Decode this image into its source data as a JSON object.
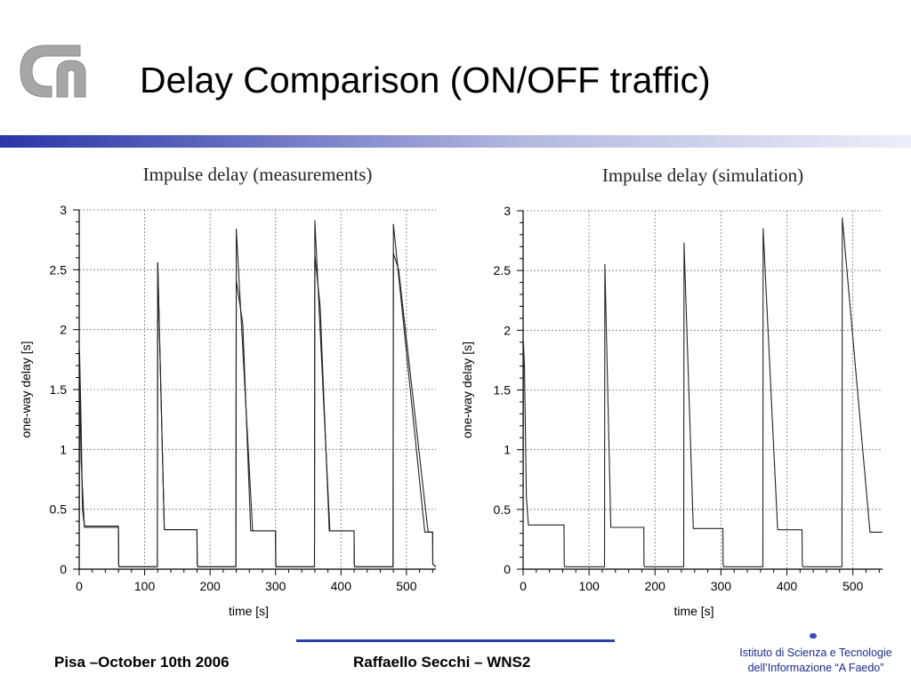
{
  "slide": {
    "title": "Delay Comparison (ON/OFF traffic)",
    "brand_color": "#2a36a8"
  },
  "footer": {
    "left_text": "Pisa –October 10th 2006",
    "center_text": "Raffaello Secchi – WNS2",
    "institute_line1": "Istituto di Scienza e Tecnologie",
    "institute_line2": "dell’Informazione “A Faedo”",
    "institute_color": "#1a2a8c"
  },
  "chart_data": [
    {
      "type": "line",
      "title": "Impulse delay (measurements)",
      "xlabel": "time [s]",
      "ylabel": "one-way delay [s]",
      "xlim": [
        0,
        545
      ],
      "ylim": [
        0,
        3
      ],
      "xticks": [
        0,
        100,
        200,
        300,
        400,
        500
      ],
      "yticks": [
        0,
        0.5,
        1,
        1.5,
        2,
        2.5,
        3
      ],
      "ytick_labels": [
        "0",
        "0.5",
        "1",
        "1.5",
        "2",
        "2.5",
        "3"
      ],
      "grid": true,
      "line_color": "#222222",
      "series": [
        {
          "x": [
            0,
            0.5,
            3,
            5,
            8,
            60,
            60.3,
            61,
            119.5,
            120,
            130,
            180,
            180.3,
            181,
            239.5,
            240,
            265,
            300,
            300.3,
            301,
            359.5,
            360,
            383,
            420,
            420.3,
            421,
            479.5,
            480,
            528,
            540,
            540.3,
            545
          ],
          "y": [
            0.02,
            1.82,
            1.2,
            0.5,
            0.36,
            0.36,
            0.04,
            0.02,
            0.02,
            2.56,
            0.33,
            0.33,
            0.04,
            0.02,
            0.02,
            2.84,
            0.32,
            0.32,
            0.04,
            0.02,
            0.02,
            2.91,
            0.32,
            0.32,
            0.04,
            0.02,
            0.02,
            2.88,
            0.31,
            0.31,
            0.04,
            0.02
          ]
        },
        {
          "x": [
            0,
            0.5,
            3,
            8,
            60,
            60.3,
            61,
            119.5,
            120,
            130,
            180,
            180.3,
            181,
            239.5,
            240,
            250,
            262,
            300,
            300.3,
            301,
            359.5,
            360,
            368,
            382,
            420,
            420.3,
            421,
            479.5,
            480,
            488,
            533,
            540,
            540.3,
            545
          ],
          "y": [
            0.02,
            1.6,
            0.9,
            0.35,
            0.35,
            0.04,
            0.02,
            0.02,
            2.56,
            0.33,
            0.33,
            0.04,
            0.02,
            0.02,
            2.41,
            2.05,
            0.32,
            0.32,
            0.04,
            0.02,
            0.02,
            2.62,
            2.2,
            0.32,
            0.32,
            0.04,
            0.02,
            0.02,
            2.64,
            2.5,
            0.31,
            0.31,
            0.04,
            0.02
          ]
        }
      ]
    },
    {
      "type": "line",
      "title": "Impulse delay (simulation)",
      "xlabel": "time [s]",
      "ylabel": "one-way delay [s]",
      "xlim": [
        0,
        545
      ],
      "ylim": [
        0,
        3
      ],
      "xticks": [
        0,
        100,
        200,
        300,
        400,
        500
      ],
      "yticks": [
        0,
        0.5,
        1,
        1.5,
        2,
        2.5,
        3
      ],
      "ytick_labels": [
        "0",
        "0.5",
        "1",
        "1.5",
        "2",
        "2.5",
        "3"
      ],
      "grid": true,
      "line_color": "#222222",
      "series": [
        {
          "x": [
            0,
            0.5,
            2,
            5,
            8,
            62,
            62.3,
            63,
            123.5,
            124,
            133,
            183,
            183.3,
            184,
            243.5,
            244,
            258,
            303,
            303.3,
            304,
            363.5,
            364,
            386,
            423,
            423.3,
            424,
            483.5,
            484,
            526,
            545
          ],
          "y": [
            0.02,
            1.9,
            1.7,
            0.6,
            0.37,
            0.37,
            0.04,
            0.02,
            0.02,
            2.55,
            0.35,
            0.35,
            0.04,
            0.02,
            0.02,
            2.73,
            0.34,
            0.34,
            0.04,
            0.02,
            0.02,
            2.85,
            0.33,
            0.33,
            0.04,
            0.02,
            0.02,
            2.94,
            0.31,
            0.31
          ]
        }
      ]
    }
  ]
}
